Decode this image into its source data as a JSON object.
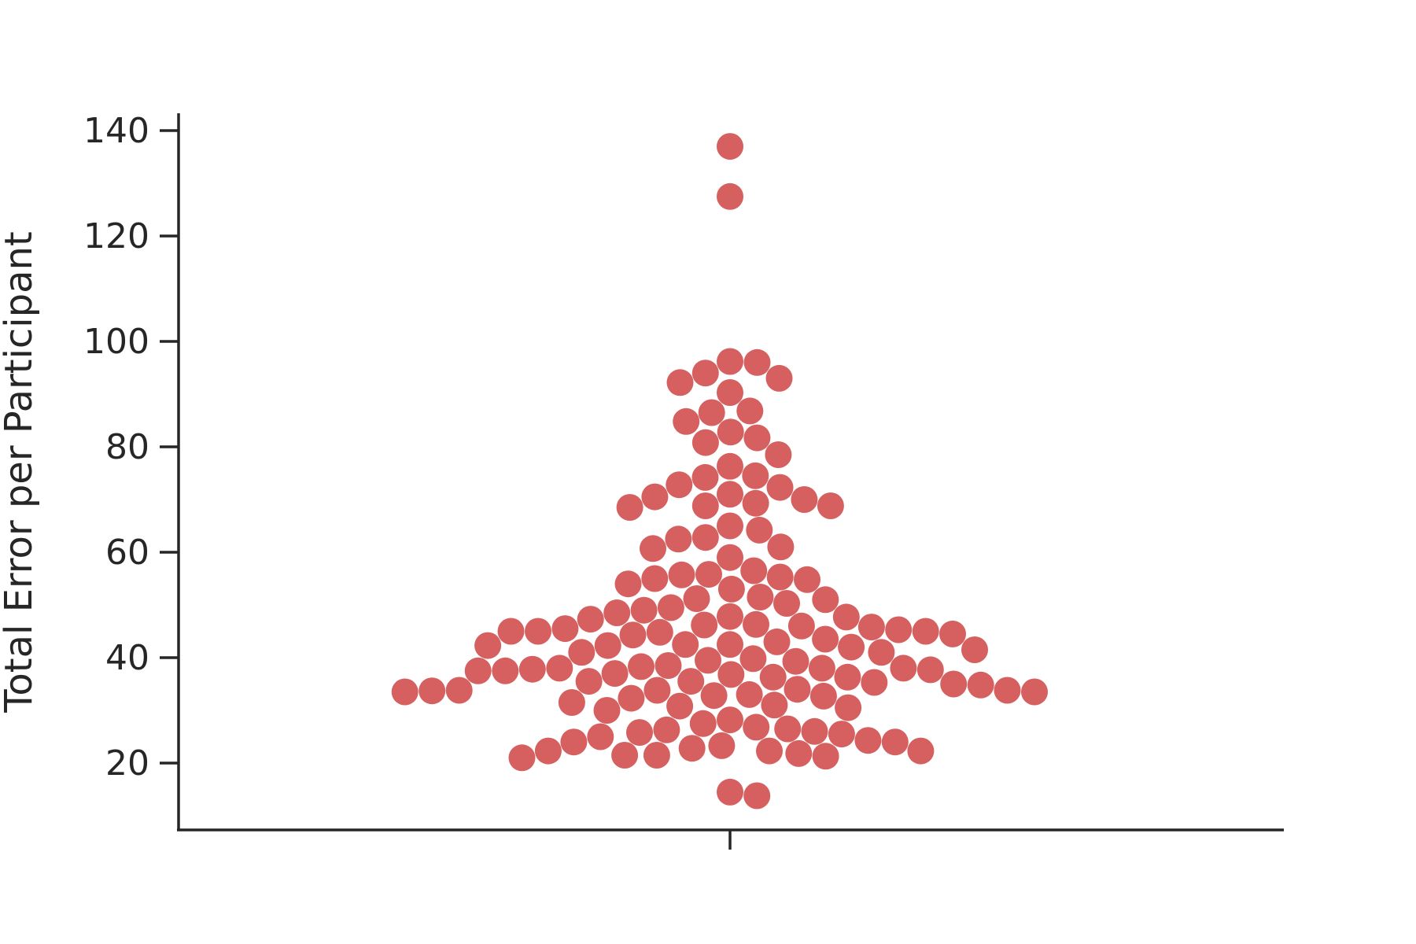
{
  "chart_data": {
    "type": "swarm",
    "ylabel": "Total Error per Participant",
    "xlabel": "",
    "ylim": [
      8,
      143
    ],
    "yticks": [
      20,
      40,
      60,
      80,
      100,
      120,
      140
    ],
    "xticks": [
      ""
    ],
    "grid": false,
    "point_color": "#d65f5f",
    "axis_color": "#262626",
    "values": [
      137.0,
      127.5,
      96.2,
      96.0,
      94.0,
      93.0,
      92.2,
      90.3,
      86.8,
      86.5,
      84.8,
      82.8,
      81.7,
      80.8,
      78.5,
      76.3,
      74.5,
      74.2,
      72.8,
      72.3,
      71.0,
      70.5,
      70.0,
      69.3,
      68.8,
      68.8,
      68.5,
      65.0,
      64.2,
      62.8,
      62.5,
      61.0,
      60.7,
      59.0,
      56.5,
      55.8,
      55.7,
      55.3,
      55.0,
      54.8,
      54.0,
      53.0,
      51.5,
      51.2,
      51.0,
      50.3,
      49.5,
      49.0,
      48.5,
      47.8,
      47.7,
      47.3,
      46.3,
      46.2,
      46.0,
      45.8,
      45.5,
      45.3,
      45.0,
      45.0,
      45.0,
      44.8,
      44.5,
      44.3,
      43.5,
      43.0,
      42.5,
      42.5,
      42.3,
      42.3,
      42.0,
      41.5,
      41.0,
      41.0,
      39.8,
      39.5,
      39.3,
      38.5,
      38.3,
      38.0,
      38.0,
      38.0,
      37.8,
      37.7,
      37.5,
      37.5,
      37.0,
      36.8,
      36.3,
      36.3,
      35.5,
      35.5,
      35.3,
      35.0,
      34.8,
      34.0,
      33.8,
      33.8,
      33.8,
      33.7,
      33.5,
      33.5,
      33.0,
      32.8,
      32.7,
      32.3,
      31.5,
      31.0,
      30.8,
      30.5,
      30.0,
      28.2,
      27.5,
      26.8,
      26.5,
      26.3,
      26.0,
      25.8,
      25.5,
      25.0,
      24.3,
      24.0,
      24.0,
      23.3,
      22.8,
      22.3,
      22.3,
      22.3,
      21.8,
      21.5,
      21.5,
      21.3,
      21.0,
      14.5,
      13.8
    ]
  }
}
